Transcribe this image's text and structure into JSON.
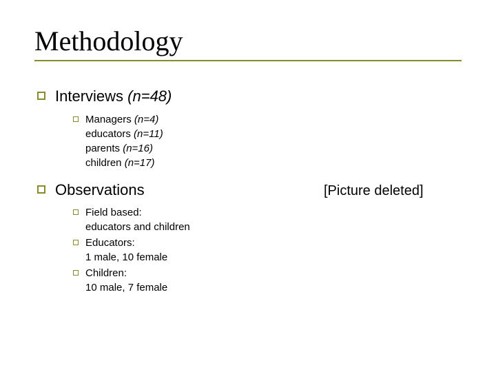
{
  "colors": {
    "accent": "#8a8a2b",
    "text": "#000000",
    "background": "#ffffff"
  },
  "title": "Methodology",
  "right_note": "[Picture deleted]",
  "sections": [
    {
      "heading_plain": "Interviews ",
      "heading_italic": "(n=48)",
      "items": [
        {
          "lines": [
            {
              "plain": "Managers ",
              "italic": "(n=4)"
            },
            {
              "plain": "educators ",
              "italic": "(n=11)"
            },
            {
              "plain": "parents ",
              "italic": "(n=16)"
            },
            {
              "plain": "children ",
              "italic": "(n=17)"
            }
          ]
        }
      ]
    },
    {
      "heading_plain": "Observations",
      "heading_italic": "",
      "items": [
        {
          "lines": [
            {
              "plain": "Field based:",
              "italic": ""
            },
            {
              "plain": "educators and children",
              "italic": ""
            }
          ]
        },
        {
          "lines": [
            {
              "plain": "Educators:",
              "italic": ""
            },
            {
              "plain": "1 male, 10 female",
              "italic": ""
            }
          ]
        },
        {
          "lines": [
            {
              "plain": "Children:",
              "italic": ""
            },
            {
              "plain": "10 male, 7 female",
              "italic": ""
            }
          ]
        }
      ]
    }
  ]
}
